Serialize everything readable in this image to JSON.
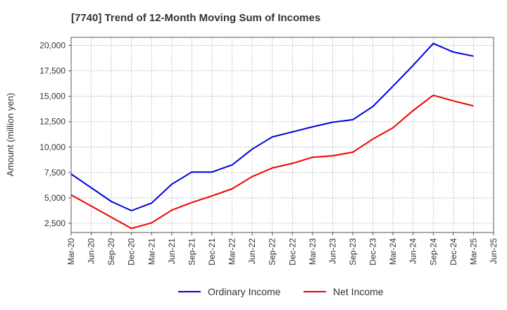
{
  "chart_data": {
    "type": "line",
    "title": "[7740]  Trend of 12-Month Moving Sum of Incomes",
    "xlabel": "",
    "ylabel": "Amount (million yen)",
    "ylim": [
      1600,
      20800
    ],
    "yticks": [
      2500,
      5000,
      7500,
      10000,
      12500,
      15000,
      17500,
      20000
    ],
    "ytick_labels": [
      "2,500",
      "5,000",
      "7,500",
      "10,000",
      "12,500",
      "15,000",
      "17,500",
      "20,000"
    ],
    "categories": [
      "Mar-20",
      "Jun-20",
      "Sep-20",
      "Dec-20",
      "Mar-21",
      "Jun-21",
      "Sep-21",
      "Dec-21",
      "Mar-22",
      "Jun-22",
      "Sep-22",
      "Dec-22",
      "Mar-23",
      "Jun-23",
      "Sep-23",
      "Dec-23",
      "Mar-24",
      "Jun-24",
      "Sep-24",
      "Dec-24",
      "Mar-25",
      "Jun-25"
    ],
    "grid": true,
    "legend_position": "bottom",
    "series": [
      {
        "name": "Ordinary Income",
        "color": "#0000dd",
        "values": [
          7350,
          6000,
          4650,
          3750,
          4500,
          6350,
          7550,
          7550,
          8250,
          9800,
          11000,
          11500,
          12000,
          12450,
          12700,
          14000,
          16000,
          18050,
          20200,
          19350,
          18950,
          null
        ]
      },
      {
        "name": "Net Income",
        "color": "#ee0000",
        "values": [
          5300,
          4200,
          3100,
          2000,
          2550,
          3800,
          4550,
          5200,
          5900,
          7100,
          7950,
          8400,
          9000,
          9150,
          9500,
          10800,
          11900,
          13600,
          15100,
          14550,
          14050,
          null
        ]
      }
    ]
  }
}
